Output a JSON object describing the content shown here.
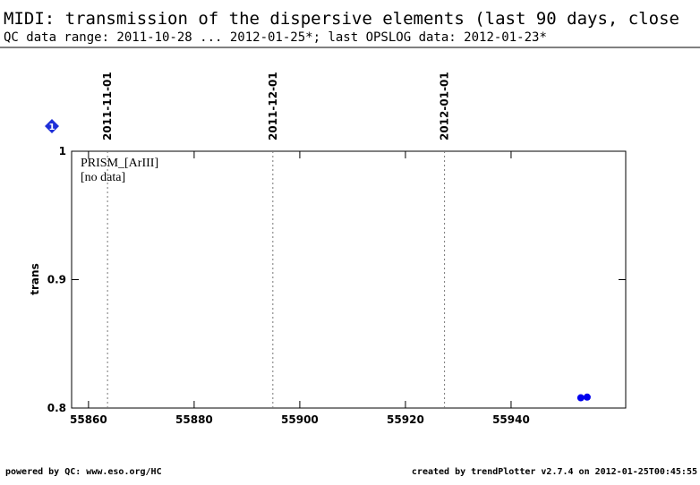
{
  "chart_data": {
    "type": "scatter",
    "title": "MIDI: transmission of the dispersive elements (last 90 days, close",
    "subtitle": "QC data range: 2011-10-28 ... 2012-01-25*; last OPSLOG data: 2012-01-23*",
    "y_label": "trans",
    "panel_label": "PRISM_[ArIII]",
    "annotation": "[no data]",
    "marker_label": "1",
    "x": [
      55953.2,
      55954.4
    ],
    "series": [
      {
        "color": "#0000ee",
        "values": [
          0.808,
          0.8085
        ]
      }
    ],
    "xlim": [
      55856.8,
      55961.7
    ],
    "ylim": [
      0.8,
      1.0
    ],
    "xticks": [
      55860,
      55880,
      55900,
      55920,
      55940
    ],
    "yticks": [
      {
        "value": 0.8,
        "label": "0.8"
      },
      {
        "value": 0.9,
        "label": "0.9"
      },
      {
        "value": 1.0,
        "label": "1"
      }
    ],
    "date_lines": [
      {
        "value": 55863.6,
        "label": "2011-11-01"
      },
      {
        "value": 55894.9,
        "label": "2011-12-01"
      },
      {
        "value": 55927.4,
        "label": "2012-01-01"
      }
    ],
    "footer_left": "powered by QC: www.eso.org/HC",
    "footer_right": "created by trendPlotter v2.7.4 on 2012-01-25T00:45:55"
  }
}
